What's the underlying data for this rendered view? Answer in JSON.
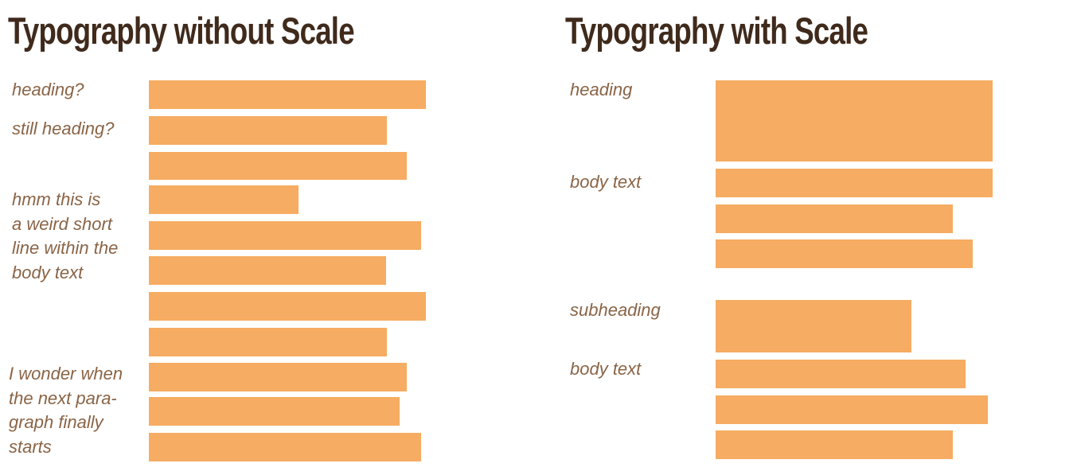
{
  "colors": {
    "title": "#3f2a1c",
    "label": "#8a6446",
    "bar": "#f6ac62"
  },
  "left_panel": {
    "title": "Typography without Scale",
    "labels": {
      "heading_q": "heading?",
      "still_heading_q": "still heading?",
      "weird_short_line": [
        "hmm this is",
        "a weird short",
        "line within the",
        "body text"
      ],
      "next_paragraph": [
        "I wonder when",
        "the next para-",
        "graph finally",
        "starts"
      ]
    }
  },
  "right_panel": {
    "title": "Typography with Scale",
    "labels": {
      "heading": "heading",
      "body_text_1": "body text",
      "subheading": "subheading",
      "body_text_2": "body text"
    }
  }
}
